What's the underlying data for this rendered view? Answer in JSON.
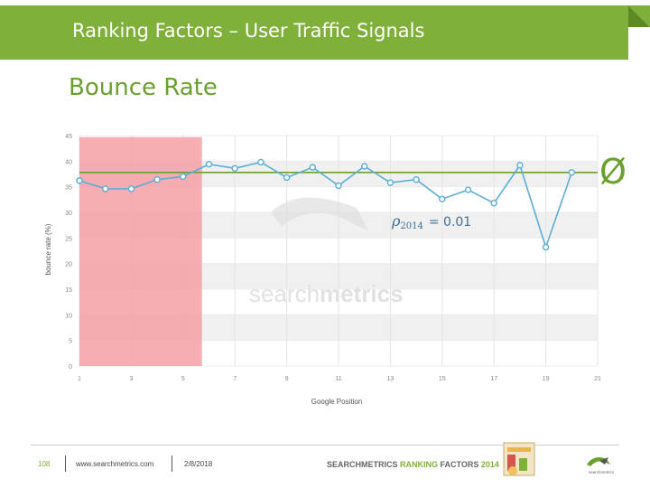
{
  "header": {
    "title": "Ranking Factors – User Traffic Signals"
  },
  "section_title": "Bounce Rate",
  "average_symbol": "Ø",
  "annotation": {
    "rho_symbol": "ρ",
    "rho_subscript": "2014",
    "rho_value": "= 0.01"
  },
  "watermark": {
    "part1": "search",
    "part2": "metrics"
  },
  "footer": {
    "page_number": "108",
    "url": "www.searchmetrics.com",
    "date": "2/8/2018",
    "brand_part1": "SEARCHMETRICS ",
    "brand_part2": "RANKING ",
    "brand_part3": "FACTORS ",
    "brand_part4": "2014",
    "logo_text": "searchmetrics"
  },
  "colors": {
    "header": "#7fb03a",
    "line": "#5aaed8",
    "average": "#6aa12e",
    "highlight": "#f4a0a6",
    "band": "#f0f0f0"
  },
  "chart_data": {
    "type": "line",
    "xlabel": "Google Position",
    "ylabel": "bounce rate (%)",
    "xlim": [
      1,
      21
    ],
    "ylim": [
      0,
      45
    ],
    "xticks": [
      1,
      3,
      5,
      7,
      9,
      11,
      13,
      15,
      17,
      19,
      21
    ],
    "yticks": [
      0,
      5,
      10,
      15,
      20,
      25,
      30,
      35,
      40,
      45
    ],
    "series": [
      {
        "x": [
          1,
          2,
          3,
          4,
          5,
          6,
          7,
          8,
          9,
          10,
          11,
          12,
          13,
          14,
          15,
          16,
          17,
          18,
          19,
          20
        ],
        "values": [
          36.2,
          34.6,
          34.6,
          36.4,
          37.0,
          39.4,
          38.6,
          39.8,
          36.8,
          38.8,
          35.2,
          39.0,
          35.8,
          36.4,
          32.6,
          34.4,
          31.8,
          39.2,
          23.2,
          37.8
        ]
      }
    ],
    "average": 37.8,
    "highlight_x_range": [
      1,
      6
    ],
    "grid": "horizontal bands"
  }
}
